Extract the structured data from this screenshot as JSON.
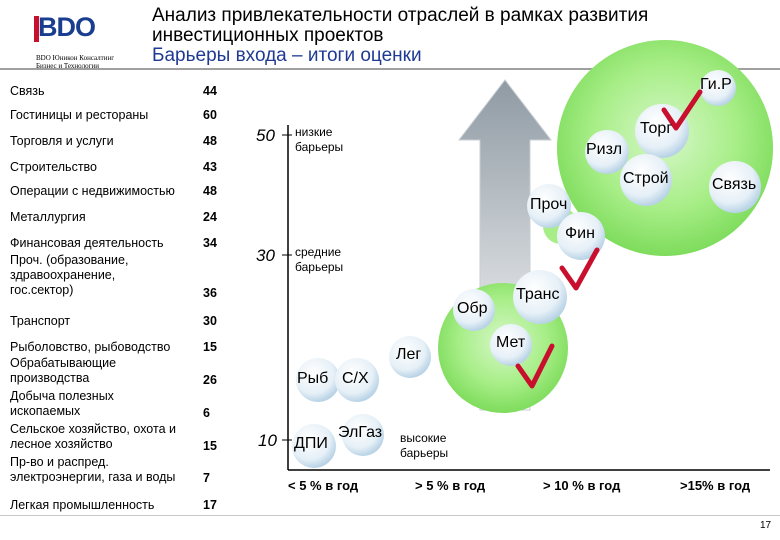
{
  "header": {
    "logo": "BDO",
    "logo_sub_line1": "BDO Юникон Консалтинг",
    "logo_sub_line2": "Бизнес и Технологии",
    "title_line1": "Анализ привлекательности отраслей в рамках развития",
    "title_line2": "инвестиционных проектов",
    "subtitle": "Барьеры входа – итоги оценки"
  },
  "table": [
    {
      "name": "Связь",
      "value": "44"
    },
    {
      "name": "Гостиницы и рестораны",
      "value": "60"
    },
    {
      "name": "Торговля и услуги",
      "value": "48"
    },
    {
      "name": "Строительство",
      "value": "43"
    },
    {
      "name": "Операции с недвижимостью",
      "value": "48"
    },
    {
      "name": "Металлургия",
      "value": "24"
    },
    {
      "name": "Финансовая деятельность",
      "value": "34"
    },
    {
      "name": "Проч. (образование, здравоохранение, гос.сектор)",
      "value": "36"
    },
    {
      "name": "Транспорт",
      "value": "30"
    },
    {
      "name": "Рыболовство, рыбоводство",
      "value": "15"
    },
    {
      "name": "Обрабатывающие производства",
      "value": "26"
    },
    {
      "name": "Добыча полезных ископаемых",
      "value": "6"
    },
    {
      "name": "Сельское хозяйство, охота и лесное хозяйство",
      "value": "15"
    },
    {
      "name": "Пр-во и распред. электроэнергии, газа и воды",
      "value": "7"
    },
    {
      "name": "Легкая промышленность",
      "value": "17"
    }
  ],
  "levels": [
    {
      "value": "50",
      "label_line1": "низкие",
      "label_line2": "барьеры"
    },
    {
      "value": "30",
      "label_line1": "средние",
      "label_line2": "барьеры"
    },
    {
      "value": "10",
      "label_line1": "высокие",
      "label_line2": "барьеры"
    }
  ],
  "x_labels": [
    "< 5 % в год",
    "> 5 % в год",
    "> 10 % в год",
    ">15% в год"
  ],
  "bubbles": [
    "Ги.Р",
    "Торг",
    "Ризл",
    "Строй",
    "Связь",
    "Проч",
    "Фин",
    "Транс",
    "Обр",
    "Мет",
    "Лег",
    "Рыб",
    "С/Х",
    "ЭлГаз",
    "ДПИ"
  ],
  "page_number": "17",
  "colors": {
    "accent_red": "#c8102e",
    "brand_blue": "#1a3e8f",
    "zone_green": "#8ee26f"
  }
}
